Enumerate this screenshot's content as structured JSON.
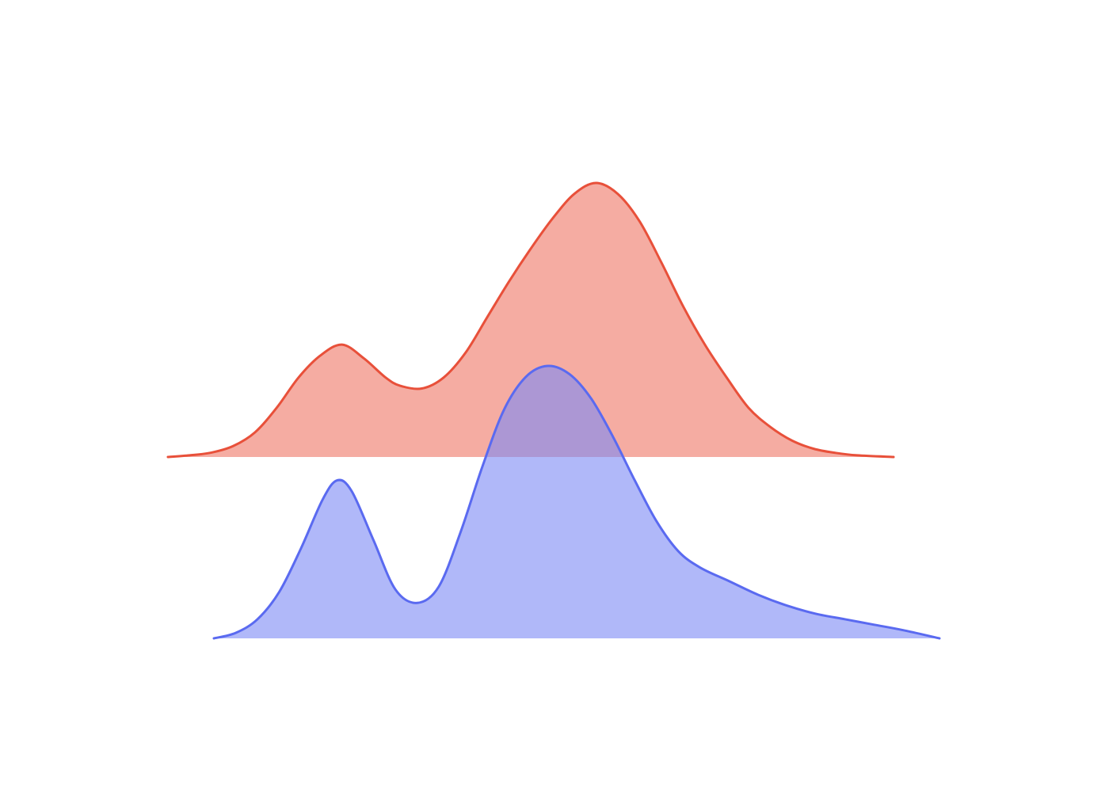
{
  "chart_data": {
    "type": "area",
    "title": "",
    "xlabel": "",
    "ylabel": "",
    "axes_visible": false,
    "grid": false,
    "legend": "none",
    "x_domain": [
      0,
      100
    ],
    "series": [
      {
        "color": "#e8503a",
        "fill_color": "#f08070",
        "fill_opacity": 0.65,
        "x_range": [
          0,
          100
        ],
        "peak_height": 1.0,
        "points": [
          [
            0,
            0.0
          ],
          [
            3,
            0.006
          ],
          [
            6,
            0.016
          ],
          [
            9,
            0.04
          ],
          [
            12,
            0.09
          ],
          [
            15,
            0.18
          ],
          [
            18,
            0.29
          ],
          [
            21,
            0.37
          ],
          [
            24,
            0.41
          ],
          [
            27,
            0.36
          ],
          [
            30,
            0.29
          ],
          [
            32,
            0.26
          ],
          [
            35,
            0.25
          ],
          [
            38,
            0.29
          ],
          [
            41,
            0.38
          ],
          [
            44,
            0.51
          ],
          [
            47,
            0.64
          ],
          [
            50,
            0.76
          ],
          [
            53,
            0.87
          ],
          [
            56,
            0.96
          ],
          [
            59,
            1.0
          ],
          [
            62,
            0.96
          ],
          [
            65,
            0.86
          ],
          [
            68,
            0.71
          ],
          [
            71,
            0.55
          ],
          [
            74,
            0.41
          ],
          [
            77,
            0.29
          ],
          [
            80,
            0.18
          ],
          [
            83,
            0.11
          ],
          [
            86,
            0.06
          ],
          [
            89,
            0.03
          ],
          [
            92,
            0.015
          ],
          [
            95,
            0.006
          ],
          [
            100,
            0.0
          ]
        ]
      },
      {
        "color": "#5a6af0",
        "fill_color": "#7b88f5",
        "fill_opacity": 0.6,
        "x_range": [
          0,
          100
        ],
        "peak_height": 1.0,
        "points": [
          [
            0,
            0.0
          ],
          [
            3,
            0.02
          ],
          [
            6,
            0.07
          ],
          [
            9,
            0.17
          ],
          [
            12,
            0.33
          ],
          [
            15,
            0.51
          ],
          [
            17,
            0.58
          ],
          [
            19,
            0.54
          ],
          [
            22,
            0.36
          ],
          [
            25,
            0.18
          ],
          [
            28,
            0.13
          ],
          [
            31,
            0.19
          ],
          [
            34,
            0.39
          ],
          [
            37,
            0.63
          ],
          [
            40,
            0.84
          ],
          [
            43,
            0.96
          ],
          [
            46,
            1.0
          ],
          [
            49,
            0.97
          ],
          [
            52,
            0.88
          ],
          [
            55,
            0.74
          ],
          [
            58,
            0.58
          ],
          [
            61,
            0.43
          ],
          [
            64,
            0.32
          ],
          [
            67,
            0.26
          ],
          [
            71,
            0.21
          ],
          [
            75,
            0.16
          ],
          [
            79,
            0.12
          ],
          [
            83,
            0.09
          ],
          [
            87,
            0.07
          ],
          [
            91,
            0.05
          ],
          [
            95,
            0.03
          ],
          [
            100,
            0.0
          ]
        ]
      }
    ]
  }
}
